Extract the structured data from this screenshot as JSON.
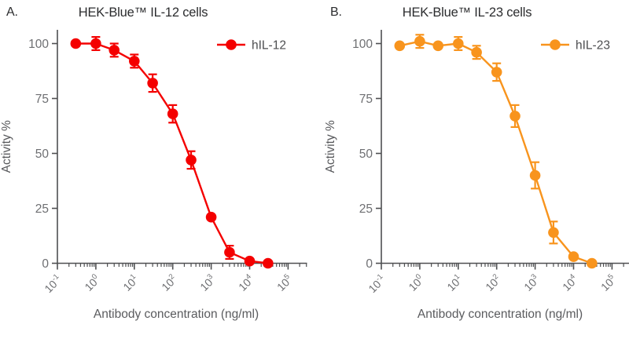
{
  "figure": {
    "background": "#ffffff",
    "axis_color": "#4e4f51",
    "tick_label_color": "#6e6f72",
    "axis_title_color": "#5a5b5e",
    "xlabel": "Antibody concentration (ng/ml)",
    "ylabel": "Activity %"
  },
  "chart_data": [
    {
      "type": "line",
      "panel_label": "A.",
      "title": "HEK-Blue™ IL-12 cells",
      "xlabel": "Antibody concentration (ng/ml)",
      "ylabel": "Activity %",
      "x_scale": "log10",
      "xlim": [
        0.1,
        100000
      ],
      "ylim": [
        0,
        100
      ],
      "y_ticks": [
        0,
        25,
        50,
        75,
        100
      ],
      "x_tick_base": "10",
      "x_tick_exponents": [
        -1,
        0,
        1,
        2,
        3,
        4,
        5
      ],
      "grid": false,
      "legend_position": "top-right",
      "series": [
        {
          "name": "hIL-12",
          "color": "#f40000",
          "x": [
            0.3,
            1,
            3,
            10,
            30,
            100,
            300,
            1000,
            3000,
            10000,
            30000
          ],
          "y": [
            100,
            100,
            97,
            92,
            82,
            68,
            47,
            21,
            5,
            1,
            0
          ],
          "yerr": [
            1,
            3,
            3,
            3,
            4,
            4,
            4,
            1,
            3,
            1,
            1
          ]
        }
      ]
    },
    {
      "type": "line",
      "panel_label": "B.",
      "title": "HEK-Blue™ IL-23 cells",
      "xlabel": "Antibody concentration (ng/ml)",
      "ylabel": "Activity %",
      "x_scale": "log10",
      "xlim": [
        0.1,
        100000
      ],
      "ylim": [
        0,
        100
      ],
      "y_ticks": [
        0,
        25,
        50,
        75,
        100
      ],
      "x_tick_base": "10",
      "x_tick_exponents": [
        -1,
        0,
        1,
        2,
        3,
        4,
        5
      ],
      "grid": false,
      "legend_position": "top-right",
      "series": [
        {
          "name": "hIL-23",
          "color": "#f8941d",
          "x": [
            0.3,
            1,
            3,
            10,
            30,
            100,
            300,
            1000,
            3000,
            10000,
            30000
          ],
          "y": [
            99,
            101,
            99,
            100,
            96,
            87,
            67,
            40,
            14,
            3,
            0
          ],
          "yerr": [
            1,
            3,
            1,
            3,
            3,
            4,
            5,
            6,
            5,
            1,
            1
          ]
        }
      ]
    }
  ]
}
